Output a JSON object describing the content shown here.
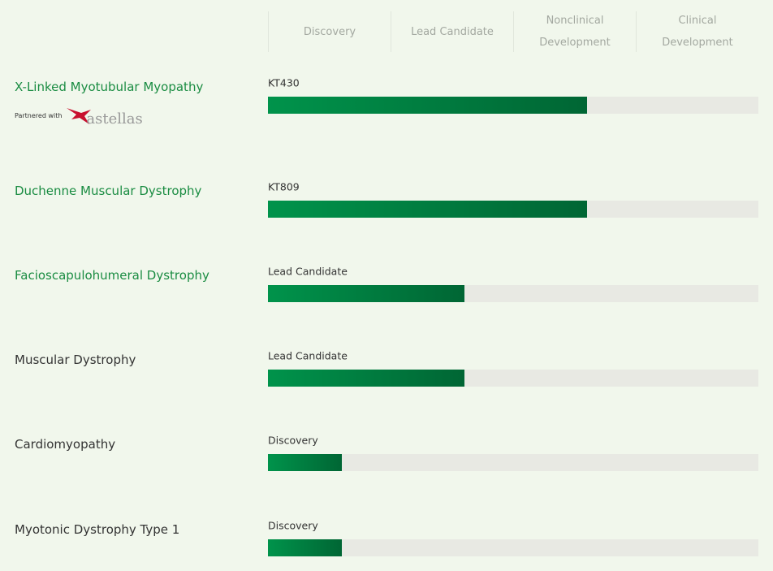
{
  "stages": [
    "Discovery",
    "Lead Candidate",
    "Nonclinical Development",
    "Clinical Development"
  ],
  "programs": [
    {
      "name": "X-Linked Myotubular Myopathy",
      "stage_label": "KT430",
      "progress": 2.6,
      "highlight": true,
      "partner": {
        "label": "Partnered with",
        "name": "astellas"
      }
    },
    {
      "name": "Duchenne Muscular Dystrophy",
      "stage_label": "KT809",
      "progress": 2.6,
      "highlight": true
    },
    {
      "name": "Facioscapulohumeral Dystrophy",
      "stage_label": "Lead Candidate",
      "progress": 1.6,
      "highlight": true
    },
    {
      "name": "Muscular Dystrophy",
      "stage_label": "Lead Candidate",
      "progress": 1.6,
      "highlight": false
    },
    {
      "name": "Cardiomyopathy",
      "stage_label": "Discovery",
      "progress": 0.6,
      "highlight": false
    },
    {
      "name": "Myotonic Dystrophy Type 1",
      "stage_label": "Discovery",
      "progress": 0.6,
      "highlight": false
    }
  ]
}
